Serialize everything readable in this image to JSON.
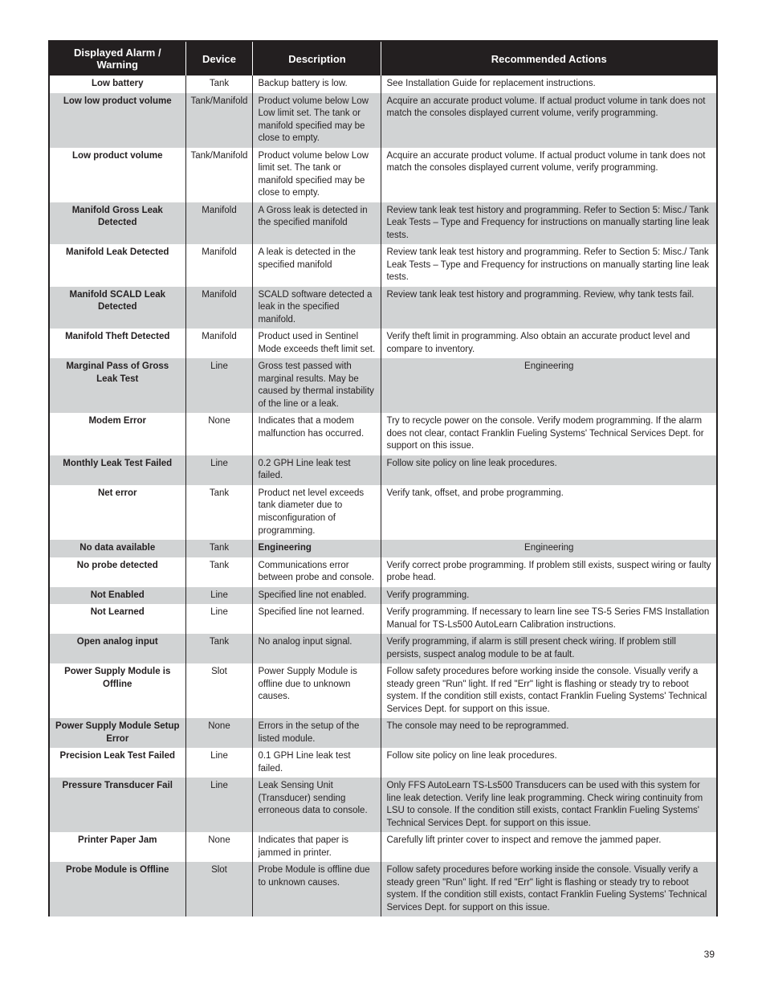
{
  "pageNumber": "39",
  "table": {
    "headers": {
      "alarm": "Displayed Alarm / Warning",
      "device": "Device",
      "description": "Description",
      "actions": "Recommended Actions"
    },
    "rows": [
      {
        "shaded": false,
        "alarm": "Low battery",
        "device": "Tank",
        "description": "Backup battery is low.",
        "actions": "See Installation Guide for replacement instructions."
      },
      {
        "shaded": true,
        "alarm": "Low low product volume",
        "device": "Tank/Manifold",
        "description": "Product volume below Low Low limit set. The tank or manifold specified may be close to empty.",
        "actions": "Acquire an accurate product volume.  If actual product volume in tank does not match the consoles displayed current volume, verify programming."
      },
      {
        "shaded": false,
        "alarm": "Low product volume",
        "device": "Tank/Manifold",
        "description": "Product volume below Low limit set. The tank or manifold specified may be close to empty.",
        "actions": "Acquire an accurate product volume.  If actual product volume in tank does not match the consoles displayed current volume, verify programming."
      },
      {
        "shaded": true,
        "alarm": "Manifold Gross Leak Detected",
        "device": "Manifold",
        "description": "A Gross leak is detected in the specified manifold",
        "actions": "Review tank leak test history and programming.  Refer to Section 5: Misc./ Tank Leak Tests – Type and Frequency for instructions on manually starting line leak tests."
      },
      {
        "shaded": false,
        "alarm": "Manifold Leak Detected",
        "device": "Manifold",
        "description": "A leak is detected in the specified manifold",
        "actions": "Review tank leak test history and programming.  Refer to Section 5: Misc./ Tank Leak Tests – Type and Frequency for instructions on manually starting line leak tests."
      },
      {
        "shaded": true,
        "alarm": "Manifold SCALD Leak Detected",
        "device": "Manifold",
        "description": "SCALD software detected a leak in the specified manifold.",
        "actions": "Review tank leak test history and programming. Review, why tank tests fail."
      },
      {
        "shaded": false,
        "alarm": "Manifold Theft Detected",
        "device": "Manifold",
        "description": "Product used in Sentinel Mode exceeds theft limit set.",
        "actions": "Verify theft limit in programming. Also obtain an accurate product level and compare to inventory."
      },
      {
        "shaded": true,
        "alarm": "Marginal Pass of Gross Leak Test",
        "device": "Line",
        "description": "Gross test passed with marginal results. May be caused by thermal instability of the line or a leak.",
        "actions": "Engineering",
        "actionsCenter": true
      },
      {
        "shaded": false,
        "alarm": "Modem Error",
        "device": "None",
        "description": "Indicates that a modem malfunction has occurred.",
        "actions": "Try to recycle power on the console. Verify modem programming. If the alarm does not clear, contact Franklin Fueling Systems' Technical Services Dept. for support on this issue."
      },
      {
        "shaded": true,
        "alarm": "Monthly Leak Test Failed",
        "device": "Line",
        "description": "0.2 GPH Line leak test failed.",
        "actions": "Follow site policy on line leak procedures."
      },
      {
        "shaded": false,
        "alarm": "Net error",
        "device": "Tank",
        "description": "Product net level exceeds tank diameter due to misconfiguration of programming.",
        "actions": "Verify tank, offset, and probe programming."
      },
      {
        "shaded": true,
        "alarm": "No data available",
        "device": "Tank",
        "description": "Engineering",
        "descriptionBold": true,
        "actions": "Engineering",
        "actionsCenter": true
      },
      {
        "shaded": false,
        "alarm": "No probe detected",
        "device": "Tank",
        "description": "Communications error between probe and console.",
        "actions": "Verify correct probe programming. If problem still exists, suspect wiring or faulty probe head."
      },
      {
        "shaded": true,
        "alarm": "Not Enabled",
        "device": "Line",
        "description": "Specified line not enabled.",
        "actions": "Verify programming."
      },
      {
        "shaded": false,
        "alarm": "Not Learned",
        "device": "Line",
        "description": "Specified line not learned.",
        "actions": "Verify programming. If necessary to learn line see TS-5 Series FMS Installation Manual for TS-Ls500 AutoLearn Calibration instructions."
      },
      {
        "shaded": true,
        "alarm": "Open analog input",
        "device": "Tank",
        "description": "No analog input signal.",
        "actions": "Verify programming, if alarm is still present check wiring. If problem still persists, suspect analog module to be at fault."
      },
      {
        "shaded": false,
        "alarm": "Power Supply Module is Offline",
        "device": "Slot",
        "description": "Power Supply Module is offline due to unknown causes.",
        "actions": "Follow safety procedures before working inside the console. Visually verify a steady green \"Run\" light. If red \"Err\" light is flashing or steady try to reboot system. If the condition still exists, contact Franklin Fueling Systems' Technical Services Dept. for support on this issue."
      },
      {
        "shaded": true,
        "alarm": "Power Supply Module Setup Error",
        "device": "None",
        "description": "Errors in the setup of the listed module.",
        "actions": "The console may need to be reprogrammed."
      },
      {
        "shaded": false,
        "alarm": "Precision Leak Test Failed",
        "device": "Line",
        "description": "0.1 GPH Line leak test failed.",
        "actions": "Follow site policy on line leak procedures."
      },
      {
        "shaded": true,
        "alarm": "Pressure Transducer Fail",
        "device": "Line",
        "description": "Leak Sensing Unit (Transducer) sending erroneous data to console.",
        "actions": "Only FFS AutoLearn TS-Ls500 Transducers can be used with this system for line leak detection. Verify line leak programming. Check wiring continuity from LSU to console. If the condition still exists, contact Franklin Fueling Systems' Technical Services Dept. for support on this issue."
      },
      {
        "shaded": false,
        "alarm": "Printer Paper Jam",
        "device": "None",
        "description": "Indicates that paper is jammed in printer.",
        "actions": "Carefully lift printer cover to inspect and remove the jammed paper."
      },
      {
        "shaded": true,
        "alarm": "Probe Module is Offline",
        "device": "Slot",
        "description": "Probe Module is offline due to unknown causes.",
        "actions": "Follow safety procedures before working inside the console. Visually verify a steady green \"Run\" light. If red \"Err\" light is flashing or steady try to reboot system. If the condition still exists, contact Franklin Fueling Systems' Technical Services Dept. for support on this issue."
      }
    ]
  }
}
